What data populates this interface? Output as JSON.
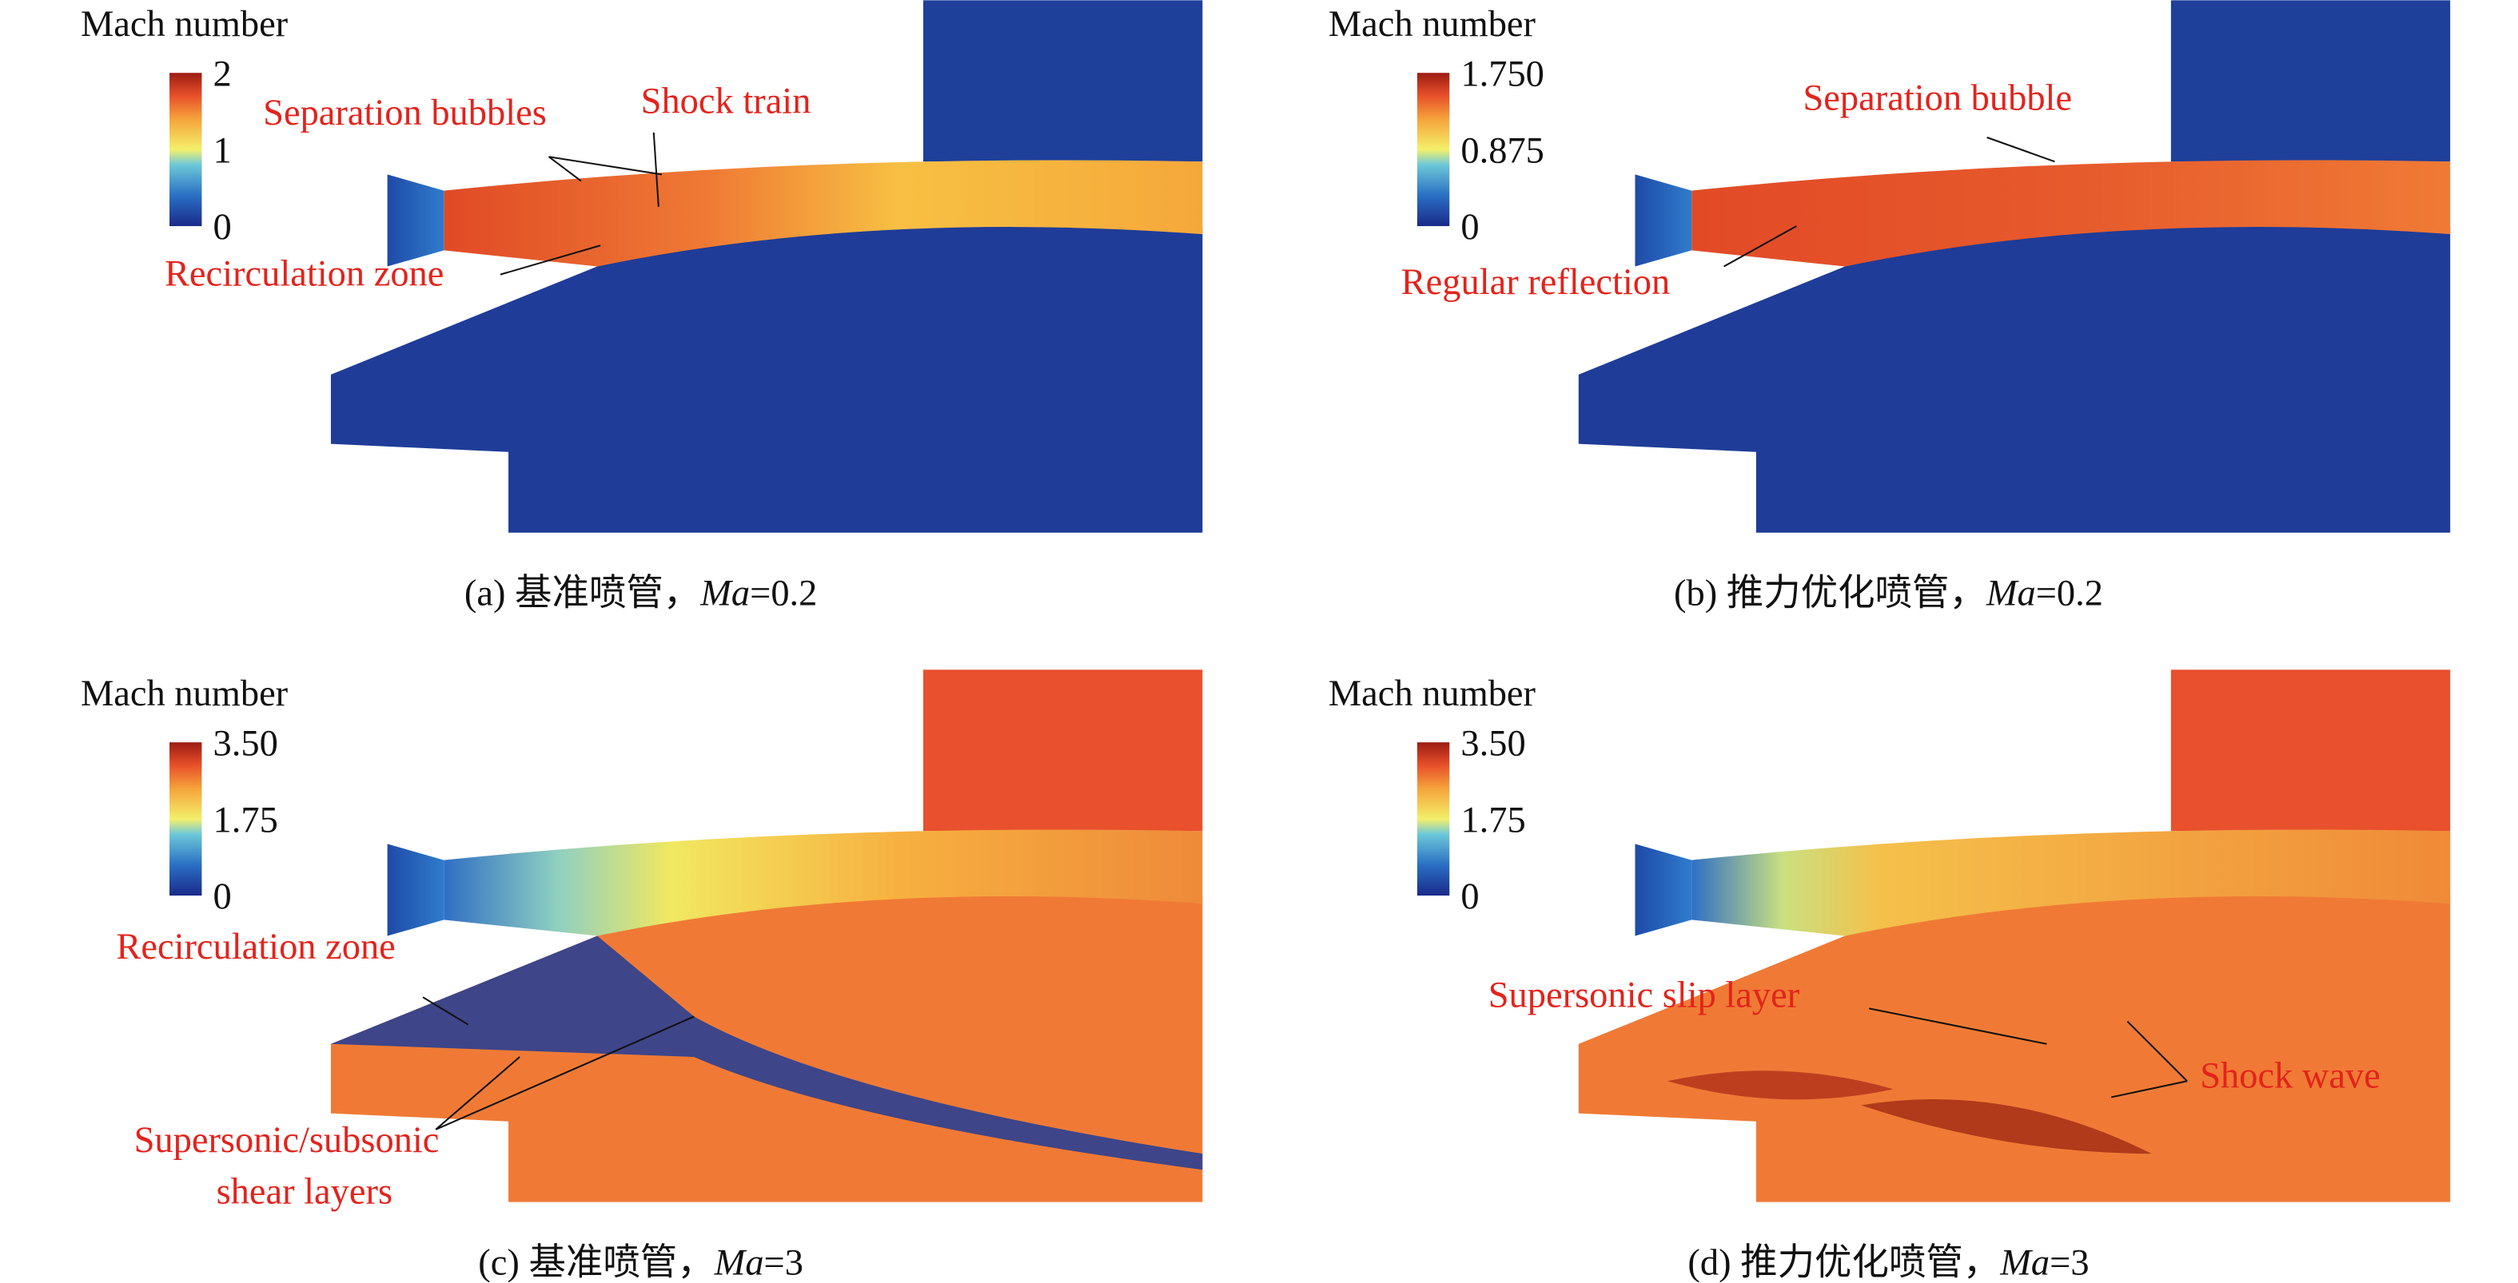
{
  "panels": [
    {
      "colorbar": {
        "title": "Mach number",
        "ticks": [
          "2",
          "1",
          "0"
        ]
      },
      "annotations": [
        "Separation bubbles",
        "Shock train",
        "Recirculation zone"
      ],
      "caption": {
        "prefix": "(a) 基准喷管，",
        "variable": "Ma",
        "suffix": "=0.2"
      }
    },
    {
      "colorbar": {
        "title": "Mach number",
        "ticks": [
          "1.750",
          "0.875",
          "0"
        ]
      },
      "annotations": [
        "Separation bubble",
        "Regular reflection"
      ],
      "caption": {
        "prefix": "(b) 推力优化喷管，",
        "variable": "Ma",
        "suffix": "=0.2"
      }
    },
    {
      "colorbar": {
        "title": "Mach number",
        "ticks": [
          "3.50",
          "1.75",
          "0"
        ]
      },
      "annotations": [
        "Recirculation zone",
        "Supersonic/subsonic",
        "shear layers"
      ],
      "caption": {
        "prefix": "(c) 基准喷管，",
        "variable": "Ma",
        "suffix": "=3"
      }
    },
    {
      "colorbar": {
        "title": "Mach number",
        "ticks": [
          "3.50",
          "1.75",
          "0"
        ]
      },
      "annotations": [
        "Supersonic slip layer",
        "Shock wave"
      ],
      "caption": {
        "prefix": "(d) 推力优化喷管，",
        "variable": "Ma",
        "suffix": "=3"
      }
    }
  ]
}
